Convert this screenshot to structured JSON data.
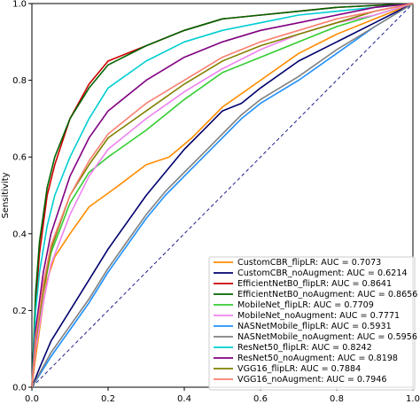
{
  "chart_data": {
    "type": "line",
    "title": "",
    "xlabel": "",
    "ylabel": "Sensitivity",
    "xlim": [
      0,
      1
    ],
    "ylim": [
      0,
      1
    ],
    "x_ticks": [
      "0.0",
      "0.2",
      "0.4",
      "0.6",
      "0.8",
      "1.0"
    ],
    "y_ticks": [
      "0.0",
      "0.2",
      "0.4",
      "0.6",
      "0.8",
      "1.0"
    ],
    "grid": false,
    "legend_position": "lower-right",
    "reference_line": {
      "points": [
        [
          0,
          0
        ],
        [
          1,
          1
        ]
      ],
      "style": "dashed",
      "color": "#1f1f8f"
    },
    "series": [
      {
        "name": "CustomCBR_flipLR: AUC = 0.7073",
        "color": "#ff8c00",
        "points": [
          [
            0,
            0
          ],
          [
            0.01,
            0.08
          ],
          [
            0.02,
            0.15
          ],
          [
            0.03,
            0.22
          ],
          [
            0.04,
            0.28
          ],
          [
            0.06,
            0.34
          ],
          [
            0.1,
            0.4
          ],
          [
            0.15,
            0.47
          ],
          [
            0.22,
            0.52
          ],
          [
            0.3,
            0.58
          ],
          [
            0.36,
            0.6
          ],
          [
            0.42,
            0.65
          ],
          [
            0.5,
            0.73
          ],
          [
            0.6,
            0.8
          ],
          [
            0.7,
            0.87
          ],
          [
            0.8,
            0.92
          ],
          [
            0.9,
            0.96
          ],
          [
            1,
            1
          ]
        ]
      },
      {
        "name": "CustomCBR_noAugment: AUC = 0.6214",
        "color": "#00006e",
        "points": [
          [
            0,
            0
          ],
          [
            0.02,
            0.05
          ],
          [
            0.05,
            0.12
          ],
          [
            0.1,
            0.2
          ],
          [
            0.15,
            0.28
          ],
          [
            0.2,
            0.36
          ],
          [
            0.25,
            0.43
          ],
          [
            0.3,
            0.5
          ],
          [
            0.35,
            0.56
          ],
          [
            0.4,
            0.62
          ],
          [
            0.45,
            0.67
          ],
          [
            0.5,
            0.72
          ],
          [
            0.55,
            0.74
          ],
          [
            0.6,
            0.78
          ],
          [
            0.7,
            0.85
          ],
          [
            0.8,
            0.9
          ],
          [
            0.9,
            0.95
          ],
          [
            1,
            1
          ]
        ]
      },
      {
        "name": "EfficientNetB0_flipLR: AUC = 0.8641",
        "color": "#cc0000",
        "points": [
          [
            0,
            0
          ],
          [
            0.01,
            0.22
          ],
          [
            0.02,
            0.35
          ],
          [
            0.04,
            0.5
          ],
          [
            0.06,
            0.58
          ],
          [
            0.1,
            0.7
          ],
          [
            0.15,
            0.79
          ],
          [
            0.2,
            0.85
          ],
          [
            0.3,
            0.89
          ],
          [
            0.4,
            0.93
          ],
          [
            0.5,
            0.96
          ],
          [
            0.6,
            0.97
          ],
          [
            0.7,
            0.98
          ],
          [
            0.8,
            0.99
          ],
          [
            1,
            1
          ]
        ]
      },
      {
        "name": "EfficientNetB0_noAugment: AUC = 0.8656",
        "color": "#006400",
        "points": [
          [
            0,
            0
          ],
          [
            0.01,
            0.25
          ],
          [
            0.02,
            0.38
          ],
          [
            0.04,
            0.52
          ],
          [
            0.06,
            0.6
          ],
          [
            0.1,
            0.7
          ],
          [
            0.15,
            0.78
          ],
          [
            0.2,
            0.84
          ],
          [
            0.3,
            0.89
          ],
          [
            0.4,
            0.93
          ],
          [
            0.5,
            0.96
          ],
          [
            0.6,
            0.97
          ],
          [
            0.7,
            0.98
          ],
          [
            0.8,
            0.99
          ],
          [
            1,
            1
          ]
        ]
      },
      {
        "name": "MobileNet_flipLR: AUC = 0.7709",
        "color": "#32cd32",
        "points": [
          [
            0,
            0
          ],
          [
            0.01,
            0.12
          ],
          [
            0.03,
            0.25
          ],
          [
            0.05,
            0.35
          ],
          [
            0.1,
            0.48
          ],
          [
            0.15,
            0.56
          ],
          [
            0.2,
            0.6
          ],
          [
            0.3,
            0.67
          ],
          [
            0.4,
            0.75
          ],
          [
            0.5,
            0.82
          ],
          [
            0.6,
            0.86
          ],
          [
            0.7,
            0.9
          ],
          [
            0.8,
            0.94
          ],
          [
            0.9,
            0.97
          ],
          [
            1,
            1
          ]
        ]
      },
      {
        "name": "MobileNet_noAugment: AUC = 0.7771",
        "color": "#ee82ee",
        "points": [
          [
            0,
            0
          ],
          [
            0.01,
            0.1
          ],
          [
            0.03,
            0.22
          ],
          [
            0.05,
            0.32
          ],
          [
            0.1,
            0.45
          ],
          [
            0.15,
            0.55
          ],
          [
            0.2,
            0.62
          ],
          [
            0.3,
            0.7
          ],
          [
            0.4,
            0.77
          ],
          [
            0.5,
            0.83
          ],
          [
            0.6,
            0.88
          ],
          [
            0.7,
            0.92
          ],
          [
            0.8,
            0.95
          ],
          [
            0.9,
            0.97
          ],
          [
            1,
            1
          ]
        ]
      },
      {
        "name": "NASNetMobile_flipLR: AUC = 0.5931",
        "color": "#1e90ff",
        "points": [
          [
            0,
            0
          ],
          [
            0.05,
            0.08
          ],
          [
            0.1,
            0.15
          ],
          [
            0.15,
            0.22
          ],
          [
            0.2,
            0.3
          ],
          [
            0.25,
            0.37
          ],
          [
            0.3,
            0.44
          ],
          [
            0.35,
            0.5
          ],
          [
            0.4,
            0.55
          ],
          [
            0.45,
            0.6
          ],
          [
            0.5,
            0.65
          ],
          [
            0.55,
            0.7
          ],
          [
            0.6,
            0.74
          ],
          [
            0.7,
            0.8
          ],
          [
            0.8,
            0.87
          ],
          [
            0.9,
            0.94
          ],
          [
            1,
            1
          ]
        ]
      },
      {
        "name": "NASNetMobile_noAugment: AUC = 0.5956",
        "color": "#808080",
        "points": [
          [
            0,
            0
          ],
          [
            0.05,
            0.09
          ],
          [
            0.1,
            0.16
          ],
          [
            0.15,
            0.23
          ],
          [
            0.2,
            0.31
          ],
          [
            0.25,
            0.38
          ],
          [
            0.3,
            0.45
          ],
          [
            0.35,
            0.51
          ],
          [
            0.4,
            0.56
          ],
          [
            0.45,
            0.61
          ],
          [
            0.5,
            0.66
          ],
          [
            0.55,
            0.71
          ],
          [
            0.6,
            0.75
          ],
          [
            0.7,
            0.81
          ],
          [
            0.8,
            0.88
          ],
          [
            0.9,
            0.94
          ],
          [
            1,
            1
          ]
        ]
      },
      {
        "name": "ResNet50_flipLR: AUC = 0.8242",
        "color": "#00ced1",
        "points": [
          [
            0,
            0
          ],
          [
            0.01,
            0.2
          ],
          [
            0.02,
            0.3
          ],
          [
            0.04,
            0.42
          ],
          [
            0.06,
            0.5
          ],
          [
            0.1,
            0.6
          ],
          [
            0.15,
            0.7
          ],
          [
            0.2,
            0.78
          ],
          [
            0.3,
            0.85
          ],
          [
            0.4,
            0.9
          ],
          [
            0.5,
            0.93
          ],
          [
            0.6,
            0.95
          ],
          [
            0.7,
            0.97
          ],
          [
            0.8,
            0.98
          ],
          [
            1,
            1
          ]
        ]
      },
      {
        "name": "ResNet50_noAugment: AUC = 0.8198",
        "color": "#800080",
        "points": [
          [
            0,
            0
          ],
          [
            0.01,
            0.15
          ],
          [
            0.03,
            0.3
          ],
          [
            0.05,
            0.4
          ],
          [
            0.1,
            0.55
          ],
          [
            0.15,
            0.65
          ],
          [
            0.2,
            0.72
          ],
          [
            0.3,
            0.8
          ],
          [
            0.4,
            0.86
          ],
          [
            0.5,
            0.9
          ],
          [
            0.6,
            0.93
          ],
          [
            0.7,
            0.95
          ],
          [
            0.8,
            0.97
          ],
          [
            0.9,
            0.99
          ],
          [
            1,
            1
          ]
        ]
      },
      {
        "name": "VGG16_flipLR: AUC = 0.7884",
        "color": "#808000",
        "points": [
          [
            0,
            0
          ],
          [
            0.01,
            0.12
          ],
          [
            0.03,
            0.25
          ],
          [
            0.05,
            0.36
          ],
          [
            0.1,
            0.5
          ],
          [
            0.15,
            0.58
          ],
          [
            0.2,
            0.65
          ],
          [
            0.3,
            0.72
          ],
          [
            0.4,
            0.79
          ],
          [
            0.5,
            0.85
          ],
          [
            0.6,
            0.89
          ],
          [
            0.7,
            0.92
          ],
          [
            0.8,
            0.95
          ],
          [
            0.9,
            0.98
          ],
          [
            1,
            1
          ]
        ]
      },
      {
        "name": "VGG16_noAugment: AUC = 0.7946",
        "color": "#fa8072",
        "points": [
          [
            0,
            0
          ],
          [
            0.01,
            0.13
          ],
          [
            0.03,
            0.27
          ],
          [
            0.05,
            0.37
          ],
          [
            0.1,
            0.5
          ],
          [
            0.15,
            0.59
          ],
          [
            0.2,
            0.66
          ],
          [
            0.3,
            0.74
          ],
          [
            0.4,
            0.8
          ],
          [
            0.5,
            0.86
          ],
          [
            0.6,
            0.9
          ],
          [
            0.7,
            0.93
          ],
          [
            0.8,
            0.96
          ],
          [
            0.9,
            0.98
          ],
          [
            1,
            1
          ]
        ]
      }
    ]
  }
}
